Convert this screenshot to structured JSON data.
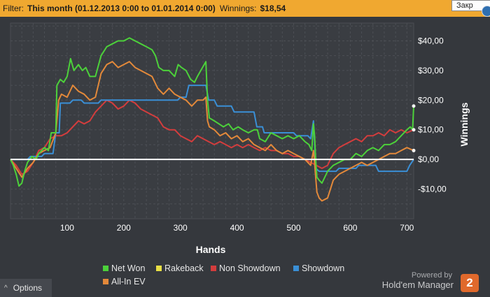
{
  "filter": {
    "label": "Filter:",
    "period": "This month (01.12.2013 0:00 to 01.01.2014 0:00)",
    "winnings_label": "Winnings:",
    "winnings_value": "$18,54"
  },
  "tooltip": {
    "text": "Закр"
  },
  "options": {
    "label": "Options"
  },
  "branding": {
    "powered_by": "Powered by",
    "product": "Hold'em Manager",
    "badge": "2"
  },
  "chart_data": {
    "type": "line",
    "xlabel": "Hands",
    "ylabel": "Winnings",
    "xlim": [
      0,
      712
    ],
    "ylim": [
      -20,
      46
    ],
    "x_ticks": [
      100,
      200,
      300,
      400,
      500,
      600,
      700
    ],
    "y_ticks": [
      -10,
      0,
      10,
      20,
      30,
      40
    ],
    "y_tick_labels": [
      "-$10,00",
      "$0,00",
      "$10,00",
      "$20,00",
      "$30,00",
      "$40,00"
    ],
    "grid": true,
    "legend_position": "bottom",
    "series": [
      {
        "name": "Net Won",
        "color": "#4cd13a",
        "points": [
          [
            0,
            0
          ],
          [
            5,
            -2
          ],
          [
            10,
            -5
          ],
          [
            15,
            -9
          ],
          [
            20,
            -8
          ],
          [
            25,
            -4
          ],
          [
            30,
            -1
          ],
          [
            38,
            1
          ],
          [
            45,
            0
          ],
          [
            50,
            2
          ],
          [
            55,
            3
          ],
          [
            60,
            4
          ],
          [
            67,
            3
          ],
          [
            72,
            9
          ],
          [
            80,
            9
          ],
          [
            82,
            25
          ],
          [
            88,
            27
          ],
          [
            94,
            26
          ],
          [
            100,
            28
          ],
          [
            106,
            34
          ],
          [
            112,
            30
          ],
          [
            120,
            32
          ],
          [
            127,
            30
          ],
          [
            133,
            31
          ],
          [
            140,
            28
          ],
          [
            150,
            28
          ],
          [
            160,
            35
          ],
          [
            170,
            38
          ],
          [
            180,
            39
          ],
          [
            190,
            40
          ],
          [
            200,
            40
          ],
          [
            210,
            41
          ],
          [
            220,
            40
          ],
          [
            230,
            39
          ],
          [
            240,
            38
          ],
          [
            250,
            37
          ],
          [
            256,
            35
          ],
          [
            262,
            31
          ],
          [
            270,
            30
          ],
          [
            280,
            30
          ],
          [
            290,
            28
          ],
          [
            296,
            32
          ],
          [
            302,
            31
          ],
          [
            310,
            30
          ],
          [
            318,
            27
          ],
          [
            325,
            26
          ],
          [
            330,
            28
          ],
          [
            345,
            33
          ],
          [
            348,
            20
          ],
          [
            351,
            14
          ],
          [
            360,
            13
          ],
          [
            368,
            12
          ],
          [
            376,
            11
          ],
          [
            385,
            12
          ],
          [
            393,
            10
          ],
          [
            402,
            11
          ],
          [
            410,
            10
          ],
          [
            420,
            9
          ],
          [
            430,
            10
          ],
          [
            436,
            10
          ],
          [
            440,
            7
          ],
          [
            450,
            6
          ],
          [
            460,
            9
          ],
          [
            470,
            8
          ],
          [
            480,
            7
          ],
          [
            490,
            8
          ],
          [
            500,
            7
          ],
          [
            510,
            8
          ],
          [
            520,
            6
          ],
          [
            527,
            5
          ],
          [
            532,
            3
          ],
          [
            535,
            12
          ],
          [
            537,
            8
          ],
          [
            539,
            0
          ],
          [
            541,
            -6
          ],
          [
            545,
            -7
          ],
          [
            550,
            -8
          ],
          [
            555,
            -6
          ],
          [
            560,
            -4
          ],
          [
            570,
            -2
          ],
          [
            580,
            -1
          ],
          [
            590,
            0
          ],
          [
            600,
            0
          ],
          [
            610,
            2
          ],
          [
            620,
            1
          ],
          [
            630,
            3
          ],
          [
            640,
            4
          ],
          [
            650,
            3
          ],
          [
            660,
            5
          ],
          [
            670,
            5
          ],
          [
            680,
            6
          ],
          [
            690,
            8
          ],
          [
            700,
            10
          ],
          [
            706,
            11
          ],
          [
            710,
            10
          ],
          [
            712,
            18
          ]
        ]
      },
      {
        "name": "Rakeback",
        "color": "#e8df45",
        "points": [
          [
            0,
            0
          ],
          [
            712,
            0
          ]
        ]
      },
      {
        "name": "Non Showdown",
        "color": "#d33d3d",
        "points": [
          [
            0,
            0
          ],
          [
            10,
            -2
          ],
          [
            20,
            -5
          ],
          [
            30,
            -4
          ],
          [
            40,
            -1
          ],
          [
            50,
            3
          ],
          [
            60,
            4
          ],
          [
            70,
            7
          ],
          [
            80,
            8
          ],
          [
            90,
            8
          ],
          [
            100,
            9
          ],
          [
            110,
            11
          ],
          [
            120,
            13
          ],
          [
            130,
            12
          ],
          [
            140,
            13
          ],
          [
            150,
            16
          ],
          [
            160,
            18
          ],
          [
            170,
            20
          ],
          [
            180,
            19
          ],
          [
            190,
            17
          ],
          [
            200,
            18
          ],
          [
            210,
            20
          ],
          [
            220,
            19
          ],
          [
            230,
            17
          ],
          [
            240,
            16
          ],
          [
            250,
            15
          ],
          [
            260,
            14
          ],
          [
            270,
            11
          ],
          [
            280,
            10
          ],
          [
            290,
            10
          ],
          [
            300,
            8
          ],
          [
            310,
            7
          ],
          [
            320,
            6
          ],
          [
            330,
            8
          ],
          [
            340,
            7
          ],
          [
            350,
            6
          ],
          [
            360,
            5
          ],
          [
            370,
            6
          ],
          [
            380,
            5
          ],
          [
            390,
            4
          ],
          [
            400,
            5
          ],
          [
            410,
            4
          ],
          [
            420,
            5
          ],
          [
            430,
            4
          ],
          [
            440,
            3
          ],
          [
            450,
            4
          ],
          [
            460,
            3
          ],
          [
            470,
            3
          ],
          [
            480,
            2
          ],
          [
            490,
            2
          ],
          [
            500,
            1
          ],
          [
            510,
            1
          ],
          [
            520,
            0
          ],
          [
            530,
            -1
          ],
          [
            540,
            -2
          ],
          [
            550,
            -3
          ],
          [
            560,
            -2
          ],
          [
            570,
            2
          ],
          [
            580,
            4
          ],
          [
            590,
            5
          ],
          [
            600,
            6
          ],
          [
            610,
            7
          ],
          [
            620,
            6
          ],
          [
            630,
            8
          ],
          [
            640,
            8
          ],
          [
            650,
            9
          ],
          [
            660,
            8
          ],
          [
            670,
            10
          ],
          [
            680,
            9
          ],
          [
            690,
            10
          ],
          [
            700,
            9
          ],
          [
            712,
            10
          ]
        ]
      },
      {
        "name": "Showdown",
        "color": "#3a8fd6",
        "points": [
          [
            0,
            0
          ],
          [
            30,
            0
          ],
          [
            35,
            1
          ],
          [
            55,
            1
          ],
          [
            60,
            2
          ],
          [
            75,
            2
          ],
          [
            80,
            9
          ],
          [
            86,
            9
          ],
          [
            88,
            19
          ],
          [
            105,
            19
          ],
          [
            110,
            20
          ],
          [
            125,
            20
          ],
          [
            130,
            19
          ],
          [
            155,
            19
          ],
          [
            160,
            20
          ],
          [
            295,
            20
          ],
          [
            300,
            21
          ],
          [
            310,
            21
          ],
          [
            315,
            25
          ],
          [
            345,
            25
          ],
          [
            350,
            20
          ],
          [
            360,
            20
          ],
          [
            365,
            18
          ],
          [
            390,
            18
          ],
          [
            395,
            16
          ],
          [
            430,
            16
          ],
          [
            435,
            11
          ],
          [
            445,
            11
          ],
          [
            448,
            9
          ],
          [
            500,
            9
          ],
          [
            505,
            8
          ],
          [
            525,
            8
          ],
          [
            530,
            7
          ],
          [
            535,
            13
          ],
          [
            537,
            6
          ],
          [
            539,
            -3
          ],
          [
            545,
            -4
          ],
          [
            575,
            -4
          ],
          [
            580,
            -3
          ],
          [
            610,
            -3
          ],
          [
            615,
            -2
          ],
          [
            645,
            -2
          ],
          [
            650,
            -4
          ],
          [
            700,
            -4
          ],
          [
            705,
            -2
          ],
          [
            712,
            0
          ]
        ]
      },
      {
        "name": "All-In EV",
        "color": "#e3893a",
        "points": [
          [
            0,
            0
          ],
          [
            10,
            -3
          ],
          [
            20,
            -6
          ],
          [
            30,
            -3
          ],
          [
            40,
            -1
          ],
          [
            50,
            2
          ],
          [
            60,
            3
          ],
          [
            70,
            4
          ],
          [
            80,
            9
          ],
          [
            85,
            20
          ],
          [
            90,
            22
          ],
          [
            100,
            21
          ],
          [
            110,
            25
          ],
          [
            120,
            23
          ],
          [
            130,
            22
          ],
          [
            140,
            20
          ],
          [
            150,
            21
          ],
          [
            160,
            29
          ],
          [
            170,
            32
          ],
          [
            180,
            33
          ],
          [
            190,
            31
          ],
          [
            200,
            32
          ],
          [
            210,
            33
          ],
          [
            220,
            31
          ],
          [
            230,
            30
          ],
          [
            240,
            29
          ],
          [
            250,
            28
          ],
          [
            260,
            24
          ],
          [
            270,
            22
          ],
          [
            280,
            24
          ],
          [
            290,
            22
          ],
          [
            300,
            21
          ],
          [
            310,
            20
          ],
          [
            320,
            18
          ],
          [
            330,
            20
          ],
          [
            340,
            20
          ],
          [
            345,
            21
          ],
          [
            348,
            13
          ],
          [
            351,
            11
          ],
          [
            360,
            10
          ],
          [
            370,
            8
          ],
          [
            380,
            9
          ],
          [
            390,
            7
          ],
          [
            400,
            8
          ],
          [
            410,
            6
          ],
          [
            420,
            7
          ],
          [
            430,
            5
          ],
          [
            440,
            4
          ],
          [
            450,
            3
          ],
          [
            460,
            5
          ],
          [
            470,
            3
          ],
          [
            480,
            2
          ],
          [
            490,
            3
          ],
          [
            500,
            2
          ],
          [
            510,
            1
          ],
          [
            520,
            0
          ],
          [
            530,
            -2
          ],
          [
            535,
            3
          ],
          [
            537,
            -1
          ],
          [
            539,
            -6
          ],
          [
            541,
            -11
          ],
          [
            545,
            -13
          ],
          [
            550,
            -14
          ],
          [
            560,
            -13
          ],
          [
            570,
            -7
          ],
          [
            580,
            -5
          ],
          [
            590,
            -4
          ],
          [
            600,
            -3
          ],
          [
            610,
            -2
          ],
          [
            620,
            -1
          ],
          [
            630,
            -2
          ],
          [
            640,
            -1
          ],
          [
            650,
            0
          ],
          [
            660,
            1
          ],
          [
            670,
            2
          ],
          [
            680,
            2
          ],
          [
            690,
            3
          ],
          [
            700,
            4
          ],
          [
            712,
            3
          ]
        ]
      }
    ]
  }
}
